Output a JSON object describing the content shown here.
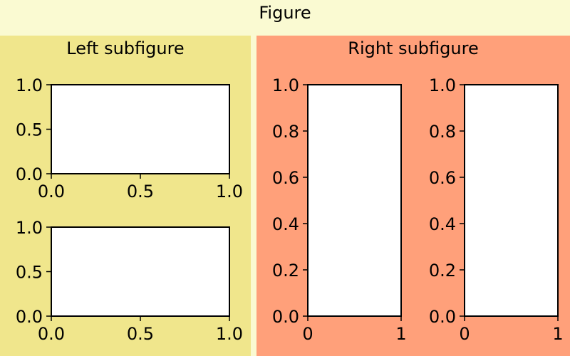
{
  "figure": {
    "title": "Figure",
    "background": "#FAFAD2"
  },
  "left_subfigure": {
    "title": "Left subfigure",
    "background": "#F0E68C"
  },
  "right_subfigure": {
    "title": "Right subfigure",
    "background": "#FFA07A"
  },
  "chart_data": [
    {
      "type": "line",
      "panel": "left-top",
      "series": [],
      "xlim": [
        0,
        1
      ],
      "ylim": [
        0,
        1
      ],
      "xticks": [
        "0.0",
        "0.5",
        "1.0"
      ],
      "yticks": [
        "0.0",
        "0.5",
        "1.0"
      ],
      "xtick_values": [
        0,
        0.5,
        1
      ],
      "ytick_values": [
        0,
        0.5,
        1
      ],
      "grid": false
    },
    {
      "type": "line",
      "panel": "left-bottom",
      "series": [],
      "xlim": [
        0,
        1
      ],
      "ylim": [
        0,
        1
      ],
      "xticks": [
        "0.0",
        "0.5",
        "1.0"
      ],
      "yticks": [
        "0.0",
        "0.5",
        "1.0"
      ],
      "xtick_values": [
        0,
        0.5,
        1
      ],
      "ytick_values": [
        0,
        0.5,
        1
      ],
      "grid": false
    },
    {
      "type": "line",
      "panel": "right-1",
      "series": [],
      "xlim": [
        0,
        1
      ],
      "ylim": [
        0,
        1
      ],
      "xticks": [
        "0",
        "1"
      ],
      "yticks": [
        "0.0",
        "0.2",
        "0.4",
        "0.6",
        "0.8",
        "1.0"
      ],
      "xtick_values": [
        0,
        1
      ],
      "ytick_values": [
        0,
        0.2,
        0.4,
        0.6,
        0.8,
        1.0
      ],
      "grid": false
    },
    {
      "type": "line",
      "panel": "right-2",
      "series": [],
      "xlim": [
        0,
        1
      ],
      "ylim": [
        0,
        1
      ],
      "xticks": [
        "0",
        "1"
      ],
      "yticks": [
        "0.0",
        "0.2",
        "0.4",
        "0.6",
        "0.8",
        "1.0"
      ],
      "xtick_values": [
        0,
        1
      ],
      "ytick_values": [
        0,
        0.2,
        0.4,
        0.6,
        0.8,
        1.0
      ],
      "grid": false
    }
  ]
}
